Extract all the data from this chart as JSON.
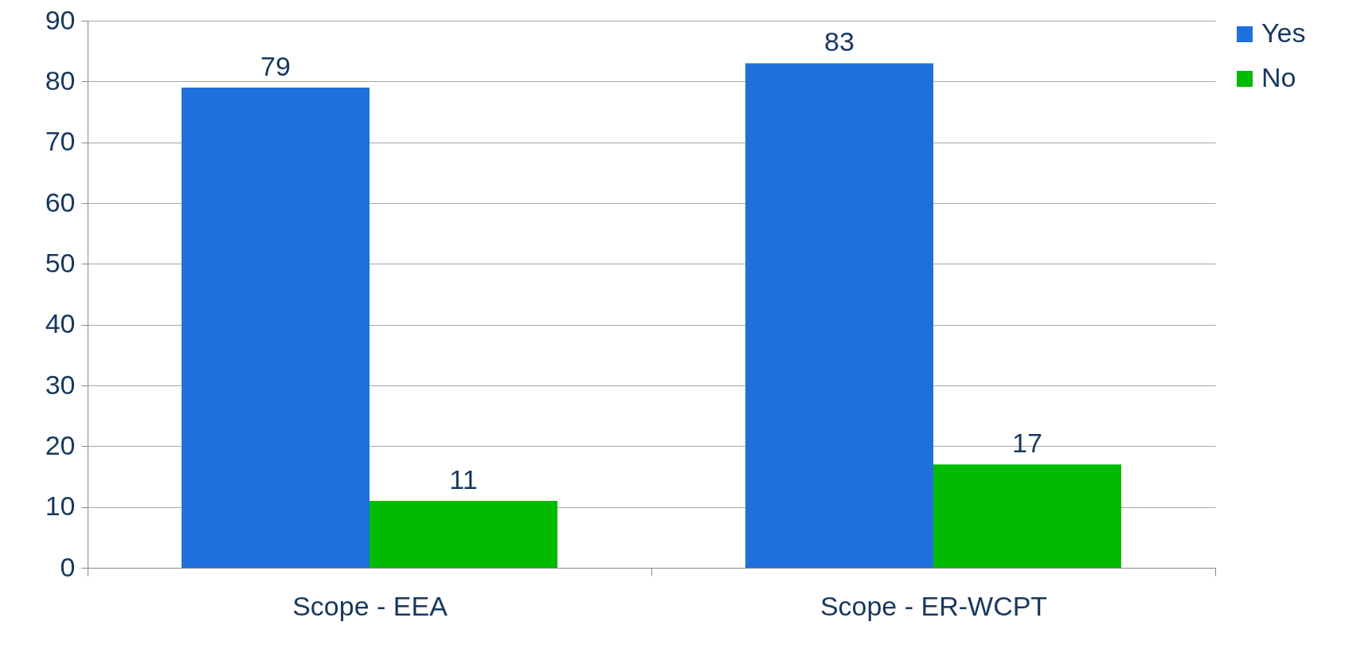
{
  "chart_data": {
    "type": "bar",
    "categories": [
      "Scope - EEA",
      "Scope - ER-WCPT"
    ],
    "series": [
      {
        "name": "Yes",
        "color": "#1f6fdc",
        "values": [
          79,
          83
        ]
      },
      {
        "name": "No",
        "color": "#00bb00",
        "values": [
          11,
          17
        ]
      }
    ],
    "ylim": [
      0,
      90
    ],
    "yticks": [
      0,
      10,
      20,
      30,
      40,
      50,
      60,
      70,
      80,
      90
    ],
    "grid": "y",
    "legend": "right",
    "data_labels": true
  }
}
